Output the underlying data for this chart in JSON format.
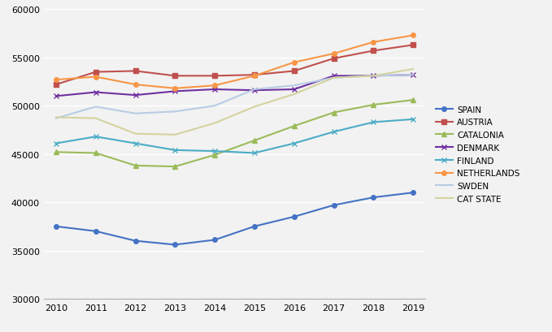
{
  "years": [
    2010,
    2011,
    2012,
    2013,
    2014,
    2015,
    2016,
    2017,
    2018,
    2019
  ],
  "series_order": [
    "SPAIN",
    "AUSTRIA",
    "CATALONIA",
    "DENMARK",
    "FINLAND",
    "NETHERLANDS",
    "SWDEN",
    "CAT STATE"
  ],
  "series": {
    "SPAIN": {
      "values": [
        37500,
        37000,
        36000,
        35600,
        36100,
        37500,
        38500,
        39700,
        40500,
        41000
      ],
      "color": "#4472C4",
      "marker": "o",
      "linewidth": 1.5,
      "markersize": 4,
      "linestyle": "-"
    },
    "AUSTRIA": {
      "values": [
        52200,
        53500,
        53600,
        53100,
        53100,
        53200,
        53600,
        54900,
        55700,
        56300
      ],
      "color": "#C0504D",
      "marker": "s",
      "linewidth": 1.5,
      "markersize": 4,
      "linestyle": "-"
    },
    "CATALONIA": {
      "values": [
        45200,
        45100,
        43800,
        43700,
        44900,
        46400,
        47900,
        49300,
        50100,
        50600
      ],
      "color": "#9BBB59",
      "marker": "^",
      "linewidth": 1.5,
      "markersize": 5,
      "linestyle": "-"
    },
    "DENMARK": {
      "values": [
        51000,
        51400,
        51100,
        51500,
        51700,
        51600,
        51700,
        53100,
        53100,
        53200
      ],
      "color": "#7030A0",
      "marker": "x",
      "linewidth": 1.5,
      "markersize": 5,
      "linestyle": "-"
    },
    "FINLAND": {
      "values": [
        46100,
        46800,
        46100,
        45400,
        45300,
        45100,
        46100,
        47300,
        48300,
        48600
      ],
      "color": "#4BACC6",
      "marker": "x",
      "linewidth": 1.5,
      "markersize": 5,
      "linestyle": "-"
    },
    "NETHERLANDS": {
      "values": [
        52700,
        53000,
        52200,
        51800,
        52100,
        53100,
        54500,
        55400,
        56600,
        57300
      ],
      "color": "#F79646",
      "marker": "o",
      "linewidth": 1.5,
      "markersize": 4,
      "linestyle": "-"
    },
    "SWDEN": {
      "values": [
        48700,
        49900,
        49200,
        49400,
        50000,
        51700,
        52100,
        52900,
        53100,
        53200
      ],
      "color": "#B8CCE4",
      "marker": "None",
      "linewidth": 1.5,
      "markersize": 4,
      "linestyle": "-"
    },
    "CAT STATE": {
      "values": [
        48800,
        48700,
        47100,
        47000,
        48200,
        49900,
        51200,
        52900,
        53100,
        53800
      ],
      "color": "#D3D3A0",
      "marker": "None",
      "linewidth": 1.5,
      "markersize": 4,
      "linestyle": "-"
    }
  },
  "ylim": [
    30000,
    60000
  ],
  "yticks": [
    30000,
    35000,
    40000,
    45000,
    50000,
    55000,
    60000
  ],
  "xlim": [
    2009.7,
    2019.3
  ],
  "xticks": [
    2010,
    2011,
    2012,
    2013,
    2014,
    2015,
    2016,
    2017,
    2018,
    2019
  ],
  "background_color": "#F2F2F2",
  "plot_bg_color": "#F2F2F2",
  "grid_color": "#FFFFFF",
  "legend_fontsize": 7.5,
  "tick_fontsize": 8
}
